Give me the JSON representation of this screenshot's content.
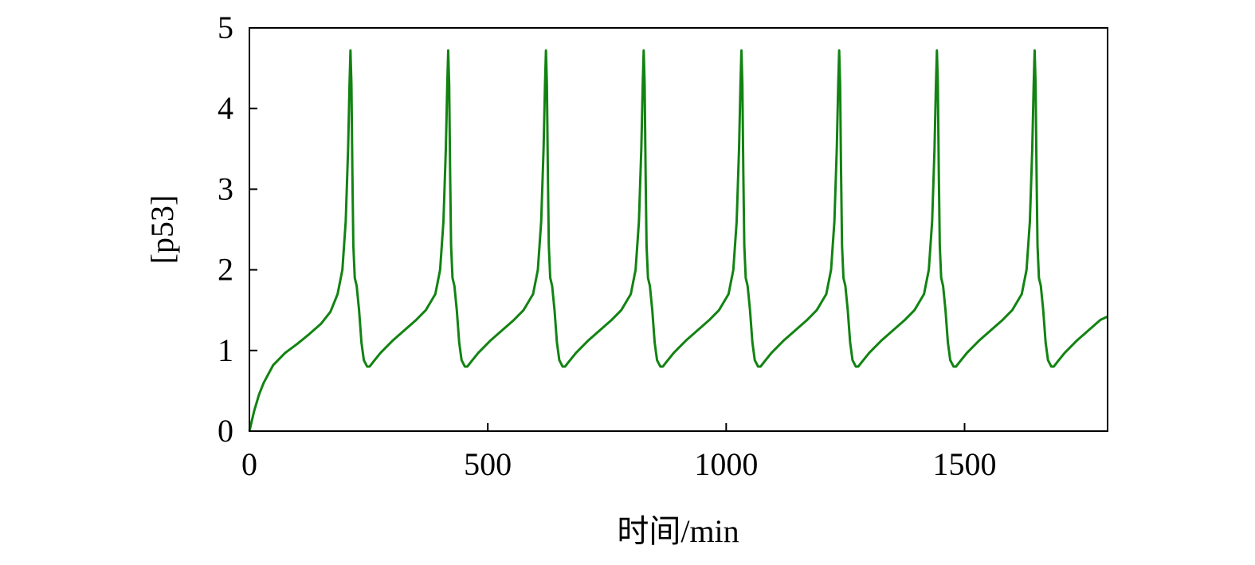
{
  "chart_data": {
    "type": "line",
    "x_label": "时间/min",
    "y_label": "[p53]",
    "xlim": [
      0,
      1800
    ],
    "ylim": [
      0,
      5
    ],
    "xticks": [
      0,
      500,
      1000,
      1500
    ],
    "yticks": [
      0,
      1,
      2,
      3,
      4,
      5
    ],
    "grid": false,
    "series": [
      {
        "color": "#128312",
        "x": [
          0,
          10,
          20,
          30,
          50,
          75,
          100,
          125,
          150,
          170,
          185,
          195,
          202,
          207,
          210,
          212,
          214,
          216,
          218,
          221,
          225,
          230,
          235,
          240,
          247,
          252,
          260,
          275,
          300,
          325,
          350,
          370,
          390,
          400,
          407,
          412,
          415,
          417,
          419,
          421,
          423,
          426,
          430,
          435,
          440,
          445,
          452,
          457,
          465,
          480,
          505,
          530,
          555,
          575,
          595,
          605,
          612,
          617,
          620,
          622,
          624,
          626,
          628,
          631,
          635,
          640,
          645,
          650,
          657,
          662,
          670,
          685,
          710,
          735,
          760,
          780,
          800,
          810,
          817,
          822,
          825,
          827,
          829,
          831,
          833,
          836,
          840,
          845,
          850,
          855,
          862,
          867,
          875,
          890,
          915,
          940,
          965,
          985,
          1005,
          1015,
          1022,
          1027,
          1030,
          1032,
          1034,
          1036,
          1038,
          1041,
          1045,
          1050,
          1055,
          1060,
          1067,
          1072,
          1080,
          1095,
          1120,
          1145,
          1170,
          1190,
          1210,
          1220,
          1227,
          1232,
          1235,
          1237,
          1239,
          1241,
          1243,
          1246,
          1250,
          1255,
          1260,
          1265,
          1272,
          1277,
          1285,
          1300,
          1325,
          1350,
          1375,
          1395,
          1415,
          1425,
          1432,
          1437,
          1440,
          1442,
          1444,
          1446,
          1448,
          1451,
          1455,
          1460,
          1465,
          1470,
          1477,
          1482,
          1490,
          1505,
          1530,
          1555,
          1580,
          1600,
          1620,
          1630,
          1637,
          1642,
          1645,
          1647,
          1649,
          1651,
          1653,
          1656,
          1660,
          1665,
          1670,
          1675,
          1682,
          1687,
          1695,
          1710,
          1735,
          1760,
          1785,
          1800
        ],
        "values": [
          0,
          0.25,
          0.45,
          0.6,
          0.82,
          0.97,
          1.08,
          1.2,
          1.33,
          1.48,
          1.7,
          2.0,
          2.6,
          3.5,
          4.3,
          4.72,
          4.3,
          3.2,
          2.3,
          1.9,
          1.8,
          1.5,
          1.1,
          0.88,
          0.8,
          0.8,
          0.86,
          0.97,
          1.12,
          1.25,
          1.38,
          1.5,
          1.7,
          2.0,
          2.6,
          3.5,
          4.3,
          4.72,
          4.3,
          3.2,
          2.3,
          1.9,
          1.8,
          1.5,
          1.1,
          0.88,
          0.8,
          0.8,
          0.86,
          0.97,
          1.12,
          1.25,
          1.38,
          1.5,
          1.7,
          2.0,
          2.6,
          3.5,
          4.3,
          4.72,
          4.3,
          3.2,
          2.3,
          1.9,
          1.8,
          1.5,
          1.1,
          0.88,
          0.8,
          0.8,
          0.86,
          0.97,
          1.12,
          1.25,
          1.38,
          1.5,
          1.7,
          2.0,
          2.6,
          3.5,
          4.3,
          4.72,
          4.3,
          3.2,
          2.3,
          1.9,
          1.8,
          1.5,
          1.1,
          0.88,
          0.8,
          0.8,
          0.86,
          0.97,
          1.12,
          1.25,
          1.38,
          1.5,
          1.7,
          2.0,
          2.6,
          3.5,
          4.3,
          4.72,
          4.3,
          3.2,
          2.3,
          1.9,
          1.8,
          1.5,
          1.1,
          0.88,
          0.8,
          0.8,
          0.86,
          0.97,
          1.12,
          1.25,
          1.38,
          1.5,
          1.7,
          2.0,
          2.6,
          3.5,
          4.3,
          4.72,
          4.3,
          3.2,
          2.3,
          1.9,
          1.8,
          1.5,
          1.1,
          0.88,
          0.8,
          0.8,
          0.86,
          0.97,
          1.12,
          1.25,
          1.38,
          1.5,
          1.7,
          2.0,
          2.6,
          3.5,
          4.3,
          4.72,
          4.3,
          3.2,
          2.3,
          1.9,
          1.8,
          1.5,
          1.1,
          0.88,
          0.8,
          0.8,
          0.86,
          0.97,
          1.12,
          1.25,
          1.38,
          1.5,
          1.7,
          2.0,
          2.6,
          3.5,
          4.3,
          4.72,
          4.3,
          3.2,
          2.3,
          1.9,
          1.8,
          1.5,
          1.1,
          0.88,
          0.8,
          0.8,
          0.86,
          0.97,
          1.12,
          1.25,
          1.38,
          1.42
        ]
      }
    ]
  }
}
